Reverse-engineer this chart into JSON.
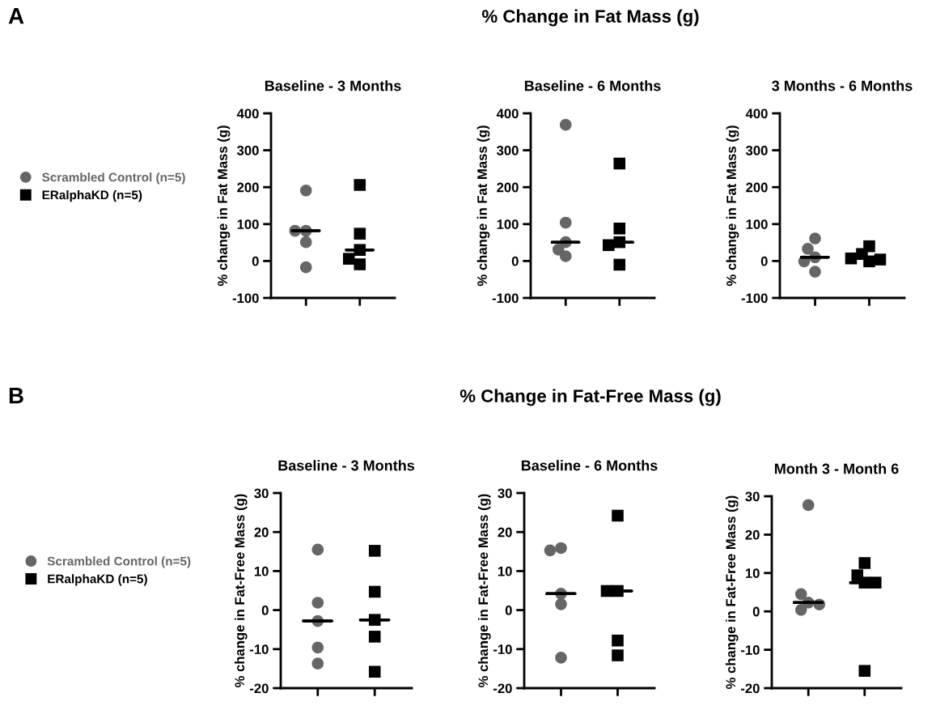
{
  "chart_data": [
    {
      "type": "scatter",
      "title": "Baseline - 3 Months",
      "ylabel": "% change in Fat Mass (g)",
      "annotations": [
        "A",
        "% Change in Fat Mass (g)"
      ],
      "legend": "left",
      "categories": [
        null,
        null
      ],
      "ylim": [
        -100,
        400
      ],
      "yticks": [
        -100,
        0,
        100,
        200,
        300,
        400
      ],
      "grid": false,
      "series": [
        {
          "name": "Scrambled Control (n=5)",
          "color": "#666666",
          "marker": "circle",
          "values": [
            191,
            null
          ]
        },
        {
          "color": "#666666",
          "marker": "circle",
          "values": [
            82,
            null
          ]
        },
        {
          "color": "#666666",
          "marker": "circle",
          "values": [
            82,
            null
          ]
        },
        {
          "color": "#666666",
          "marker": "circle",
          "values": [
            51,
            null
          ]
        },
        {
          "color": "#666666",
          "marker": "circle",
          "values": [
            -17,
            null
          ]
        },
        {
          "name": "ERalphaKD (n=5)",
          "color": "#000000",
          "marker": "square",
          "values": [
            null,
            206
          ]
        },
        {
          "color": "#000000",
          "marker": "square",
          "values": [
            null,
            74
          ]
        },
        {
          "color": "#000000",
          "marker": "square",
          "values": [
            null,
            30
          ]
        },
        {
          "color": "#000000",
          "marker": "square",
          "values": [
            null,
            -9
          ]
        },
        {
          "color": "#000000",
          "marker": "square",
          "values": [
            null,
            6
          ]
        },
        {
          "type": "box",
          "color": "#000000",
          "boxes": [
            {
              "low": 82,
              "q1": 82,
              "median": 82,
              "q3": 82,
              "high": 82
            },
            {
              "low": 30,
              "q1": 30,
              "median": 30,
              "q3": 30,
              "high": 30
            }
          ]
        }
      ]
    },
    {
      "type": "scatter",
      "title": "Baseline - 6 Months",
      "ylabel": "% change in Fat Mass (g)",
      "categories": [
        null,
        null
      ],
      "ylim": [
        -100,
        400
      ],
      "yticks": [
        -100,
        0,
        100,
        200,
        300,
        400
      ],
      "grid": false,
      "series": [
        {
          "color": "#666666",
          "marker": "circle",
          "values": [
            369,
            null
          ]
        },
        {
          "color": "#666666",
          "marker": "circle",
          "values": [
            104,
            null
          ]
        },
        {
          "color": "#666666",
          "marker": "circle",
          "values": [
            51,
            null
          ]
        },
        {
          "color": "#666666",
          "marker": "circle",
          "values": [
            13,
            null
          ]
        },
        {
          "color": "#666666",
          "marker": "circle",
          "values": [
            31,
            null
          ]
        },
        {
          "color": "#000000",
          "marker": "square",
          "values": [
            null,
            264
          ]
        },
        {
          "color": "#000000",
          "marker": "square",
          "values": [
            null,
            88
          ]
        },
        {
          "color": "#000000",
          "marker": "square",
          "values": [
            null,
            51
          ]
        },
        {
          "color": "#000000",
          "marker": "square",
          "values": [
            null,
            43
          ]
        },
        {
          "color": "#000000",
          "marker": "square",
          "values": [
            null,
            -10
          ]
        },
        {
          "type": "box",
          "color": "#000000",
          "boxes": [
            {
              "low": 51,
              "q1": 51,
              "median": 51,
              "q3": 51,
              "high": 51
            },
            {
              "low": 51,
              "q1": 51,
              "median": 51,
              "q3": 51,
              "high": 51
            }
          ]
        }
      ]
    },
    {
      "type": "scatter",
      "title": "3 Months - 6 Months",
      "ylabel": "% change in Fat Mass (g)",
      "categories": [
        null,
        null
      ],
      "ylim": [
        -100,
        400
      ],
      "yticks": [
        -100,
        0,
        100,
        200,
        300,
        400
      ],
      "grid": false,
      "series": [
        {
          "color": "#666666",
          "marker": "circle",
          "values": [
            61,
            null
          ]
        },
        {
          "color": "#666666",
          "marker": "circle",
          "values": [
            10,
            null
          ]
        },
        {
          "color": "#666666",
          "marker": "circle",
          "values": [
            33,
            null
          ]
        },
        {
          "color": "#666666",
          "marker": "circle",
          "values": [
            -1,
            null
          ]
        },
        {
          "color": "#666666",
          "marker": "circle",
          "values": [
            -29,
            null
          ]
        },
        {
          "color": "#000000",
          "marker": "square",
          "values": [
            null,
            40
          ]
        },
        {
          "color": "#000000",
          "marker": "square",
          "values": [
            null,
            19
          ]
        },
        {
          "color": "#000000",
          "marker": "square",
          "values": [
            null,
            -1
          ]
        },
        {
          "color": "#000000",
          "marker": "square",
          "values": [
            null,
            4
          ]
        },
        {
          "color": "#000000",
          "marker": "square",
          "values": [
            null,
            7
          ]
        },
        {
          "type": "box",
          "color": "#000000",
          "boxes": [
            {
              "low": 10,
              "q1": 10,
              "median": 10,
              "q3": 10,
              "high": 10
            },
            {
              "low": 7,
              "q1": 7,
              "median": 7,
              "q3": 7,
              "high": 7
            }
          ]
        }
      ]
    },
    {
      "type": "scatter",
      "title": "Baseline - 3 Months",
      "ylabel": "% change in Fat-Free Mass (g)",
      "annotations": [
        "B",
        "% Change in Fat-Free Mass (g)"
      ],
      "legend": "left",
      "categories": [
        null,
        null
      ],
      "ylim": [
        -20,
        30
      ],
      "yticks": [
        -20,
        -10,
        0,
        10,
        20,
        30
      ],
      "grid": false,
      "series": [
        {
          "name": "Scrambled Control (n=5)",
          "color": "#666666",
          "marker": "circle",
          "values": [
            15.5,
            null
          ]
        },
        {
          "color": "#666666",
          "marker": "circle",
          "values": [
            1.9,
            null
          ]
        },
        {
          "color": "#666666",
          "marker": "circle",
          "values": [
            -2.8,
            null
          ]
        },
        {
          "color": "#666666",
          "marker": "circle",
          "values": [
            -9.6,
            null
          ]
        },
        {
          "color": "#666666",
          "marker": "circle",
          "values": [
            -13.7,
            null
          ]
        },
        {
          "name": "ERalphaKD (n=5)",
          "color": "#000000",
          "marker": "square",
          "values": [
            null,
            15.2
          ]
        },
        {
          "color": "#000000",
          "marker": "square",
          "values": [
            null,
            4.7
          ]
        },
        {
          "color": "#000000",
          "marker": "square",
          "values": [
            null,
            -2.5
          ]
        },
        {
          "color": "#000000",
          "marker": "square",
          "values": [
            null,
            -6.8
          ]
        },
        {
          "color": "#000000",
          "marker": "square",
          "values": [
            null,
            -15.8
          ]
        },
        {
          "type": "box",
          "color": "#000000",
          "boxes": [
            {
              "low": -2.8,
              "q1": -2.8,
              "median": -2.8,
              "q3": -2.8,
              "high": -2.8
            },
            {
              "low": -2.5,
              "q1": -2.5,
              "median": -2.5,
              "q3": -2.5,
              "high": -2.5
            }
          ]
        }
      ]
    },
    {
      "type": "scatter",
      "title": "Baseline - 6 Months",
      "ylabel": "% change in Fat-Free Mass (g)",
      "categories": [
        null,
        null
      ],
      "ylim": [
        -20,
        30
      ],
      "yticks": [
        -20,
        -10,
        0,
        10,
        20,
        30
      ],
      "grid": false,
      "series": [
        {
          "color": "#666666",
          "marker": "circle",
          "values": [
            4.2,
            null
          ]
        },
        {
          "color": "#666666",
          "marker": "circle",
          "values": [
            15.9,
            null
          ]
        },
        {
          "color": "#666666",
          "marker": "circle",
          "values": [
            15.3,
            null
          ]
        },
        {
          "color": "#666666",
          "marker": "circle",
          "values": [
            1.5,
            null
          ]
        },
        {
          "color": "#666666",
          "marker": "circle",
          "values": [
            -12.2,
            null
          ]
        },
        {
          "color": "#000000",
          "marker": "square",
          "values": [
            null,
            24.2
          ]
        },
        {
          "color": "#000000",
          "marker": "square",
          "values": [
            null,
            4.9
          ]
        },
        {
          "color": "#000000",
          "marker": "square",
          "values": [
            null,
            4.9
          ]
        },
        {
          "color": "#000000",
          "marker": "square",
          "values": [
            null,
            -7.8
          ]
        },
        {
          "color": "#000000",
          "marker": "square",
          "values": [
            null,
            -11.6
          ]
        },
        {
          "type": "box",
          "color": "#000000",
          "boxes": [
            {
              "low": 4.2,
              "q1": 4.2,
              "median": 4.2,
              "q3": 4.2,
              "high": 4.2
            },
            {
              "low": 4.9,
              "q1": 4.9,
              "median": 4.9,
              "q3": 4.9,
              "high": 4.9
            }
          ]
        }
      ]
    },
    {
      "type": "scatter",
      "title": "Month 3 - Month 6",
      "ylabel": "% change in Fat-Free Mass (g)",
      "categories": [
        null,
        null
      ],
      "ylim": [
        -20,
        30
      ],
      "yticks": [
        -20,
        -10,
        0,
        10,
        20,
        30
      ],
      "grid": false,
      "series": [
        {
          "color": "#666666",
          "marker": "circle",
          "values": [
            27.7,
            null
          ]
        },
        {
          "color": "#666666",
          "marker": "circle",
          "values": [
            2.3,
            null
          ]
        },
        {
          "color": "#666666",
          "marker": "circle",
          "values": [
            0.4,
            null
          ]
        },
        {
          "color": "#666666",
          "marker": "circle",
          "values": [
            4.5,
            null
          ]
        },
        {
          "color": "#666666",
          "marker": "circle",
          "values": [
            1.8,
            null
          ]
        },
        {
          "color": "#000000",
          "marker": "square",
          "values": [
            null,
            12.6
          ]
        },
        {
          "color": "#000000",
          "marker": "square",
          "values": [
            null,
            7.5
          ]
        },
        {
          "color": "#000000",
          "marker": "square",
          "values": [
            null,
            9.4
          ]
        },
        {
          "color": "#000000",
          "marker": "square",
          "values": [
            null,
            7.5
          ]
        },
        {
          "color": "#000000",
          "marker": "square",
          "values": [
            null,
            -15.5
          ]
        },
        {
          "type": "box",
          "color": "#000000",
          "boxes": [
            {
              "low": 2.3,
              "q1": 2.3,
              "median": 2.3,
              "q3": 2.3,
              "high": 2.3
            },
            {
              "low": 7.5,
              "q1": 7.5,
              "median": 7.5,
              "q3": 7.5,
              "high": 7.5
            }
          ]
        }
      ]
    }
  ]
}
